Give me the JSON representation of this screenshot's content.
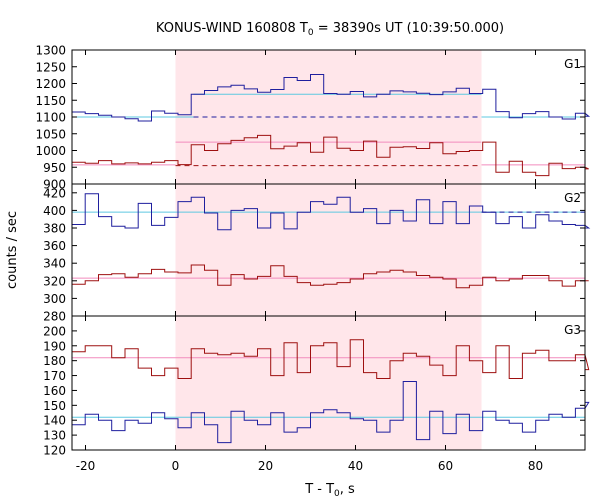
{
  "chart_data": {
    "type": "line",
    "title_main": "KONUS-WIND 160808 T",
    "title_sub": "0",
    "title_rest": " = 38390s UT (10:39:50.000)",
    "ylabel": "counts / sec",
    "xlabel_main": "T - T",
    "xlabel_sub": "0",
    "xlabel_rest": ", s",
    "xlim": [
      -23,
      91
    ],
    "xticks": [
      -20,
      0,
      20,
      40,
      60,
      80
    ],
    "highlight_interval": [
      0,
      68
    ],
    "colors": {
      "blue": "#1f1f9e",
      "red": "#9e1010",
      "cyan": "#5ec8e0",
      "pink": "#f28bbd",
      "highlight": "#ffe6ea"
    },
    "panels": [
      {
        "label": "G1",
        "ylim": [
          900,
          1300
        ],
        "yticks": [
          900,
          950,
          1000,
          1050,
          1100,
          1150,
          1200,
          1250,
          1300
        ],
        "series": [
          {
            "color": "blue",
            "x0": -23,
            "step": 2.944,
            "values": [
              1115,
              1110,
              1105,
              1100,
              1095,
              1088,
              1118,
              1111,
              1107,
              1168,
              1179,
              1190,
              1195,
              1184,
              1174,
              1182,
              1218,
              1209,
              1227,
              1170,
              1168,
              1176,
              1160,
              1168,
              1178,
              1175,
              1171,
              1167,
              1175,
              1186,
              1170,
              1183,
              1116,
              1098,
              1110,
              1116,
              1100,
              1094,
              1111,
              1102
            ]
          },
          {
            "color": "red",
            "x0": -23,
            "step": 2.944,
            "values": [
              965,
              962,
              970,
              960,
              963,
              960,
              965,
              970,
              958,
              1017,
              1000,
              1020,
              1030,
              1038,
              1045,
              1005,
              1013,
              1023,
              995,
              1040,
              1007,
              1000,
              1028,
              980,
              1010,
              1011,
              1006,
              1023,
              990,
              997,
              1000,
              1025,
              935,
              968,
              935,
              925,
              962,
              946,
              950,
              945
            ]
          }
        ],
        "fits": [
          {
            "color": "cyan",
            "style": "solid",
            "segments": [
              [
                -23,
                4,
                1100
              ],
              [
                4,
                68,
                1168
              ],
              [
                68,
                91,
                1100
              ]
            ]
          },
          {
            "color": "blue",
            "style": "dashed",
            "segments": [
              [
                4,
                68,
                1100
              ]
            ]
          },
          {
            "color": "pink",
            "style": "solid",
            "segments": [
              [
                -23,
                0,
                957
              ],
              [
                0,
                68,
                1025
              ],
              [
                68,
                91,
                957
              ]
            ]
          },
          {
            "color": "red",
            "style": "dashed",
            "segments": [
              [
                0,
                68,
                955
              ]
            ]
          }
        ]
      },
      {
        "label": "G2",
        "ylim": [
          280,
          430
        ],
        "yticks": [
          280,
          300,
          320,
          340,
          360,
          380,
          400,
          420
        ],
        "series": [
          {
            "color": "blue",
            "x0": -23,
            "step": 2.944,
            "values": [
              384,
              419,
              393,
              382,
              380,
              408,
              383,
              392,
              410,
              415,
              397,
              378,
              400,
              402,
              380,
              397,
              379,
              398,
              410,
              407,
              415,
              398,
              402,
              385,
              400,
              388,
              412,
              385,
              410,
              385,
              405,
              398,
              385,
              393,
              380,
              395,
              388,
              384,
              383,
              380
            ]
          },
          {
            "color": "red",
            "x0": -23,
            "step": 2.944,
            "values": [
              316,
              320,
              327,
              328,
              324,
              328,
              333,
              330,
              329,
              338,
              332,
              315,
              327,
              322,
              325,
              337,
              325,
              318,
              315,
              316,
              318,
              322,
              328,
              330,
              332,
              330,
              326,
              324,
              322,
              312,
              315,
              324,
              320,
              322,
              326,
              326,
              320,
              314,
              320,
              320
            ]
          }
        ],
        "fits": [
          {
            "color": "cyan",
            "style": "solid",
            "segments": [
              [
                -23,
                91,
                398
              ]
            ]
          },
          {
            "color": "blue",
            "style": "dashed",
            "segments": [
              [
                68,
                91,
                398
              ]
            ]
          },
          {
            "color": "pink",
            "style": "solid",
            "segments": [
              [
                -23,
                91,
                323
              ]
            ]
          }
        ]
      },
      {
        "label": "G3",
        "ylim": [
          120,
          210
        ],
        "yticks": [
          120,
          130,
          140,
          150,
          160,
          170,
          180,
          190,
          200
        ],
        "series": [
          {
            "color": "red",
            "x0": -23,
            "step": 2.944,
            "values": [
              186,
              190,
              190,
              182,
              188,
              175,
              170,
              175,
              168,
              188,
              185,
              184,
              185,
              183,
              188,
              170,
              192,
              172,
              190,
              192,
              176,
              194,
              172,
              168,
              180,
              185,
              183,
              177,
              170,
              190,
              180,
              172,
              190,
              168,
              185,
              187,
              180,
              180,
              184,
              174
            ]
          },
          {
            "color": "blue",
            "x0": -23,
            "step": 2.944,
            "values": [
              137,
              144,
              140,
              133,
              140,
              138,
              145,
              141,
              135,
              145,
              137,
              125,
              146,
              140,
              137,
              145,
              132,
              135,
              145,
              147,
              145,
              141,
              140,
              132,
              140,
              166,
              127,
              146,
              131,
              144,
              133,
              146,
              140,
              138,
              132,
              140,
              144,
              142,
              148,
              152
            ]
          }
        ],
        "fits": [
          {
            "color": "pink",
            "style": "solid",
            "segments": [
              [
                -23,
                91,
                182
              ]
            ]
          },
          {
            "color": "cyan",
            "style": "solid",
            "segments": [
              [
                -23,
                91,
                142
              ]
            ]
          }
        ]
      }
    ]
  }
}
